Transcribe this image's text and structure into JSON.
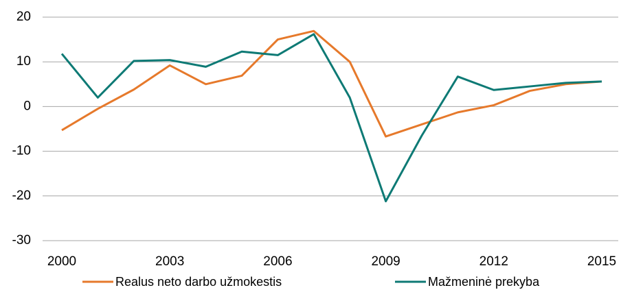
{
  "chart_data": {
    "type": "line",
    "x": [
      2000,
      2001,
      2002,
      2003,
      2004,
      2005,
      2006,
      2007,
      2008,
      2009,
      2010,
      2011,
      2012,
      2013,
      2014,
      2015
    ],
    "series": [
      {
        "name": "Realus neto darbo užmokestis",
        "color": "#e6792b",
        "values": [
          -5.3,
          -0.5,
          3.8,
          9.2,
          5.0,
          6.9,
          15.0,
          16.9,
          10.0,
          -6.7,
          -4.0,
          -1.3,
          0.3,
          3.5,
          5.0,
          5.6
        ]
      },
      {
        "name": "Mažmeninė prekyba",
        "color": "#0e7a75",
        "values": [
          11.8,
          2.0,
          10.2,
          10.4,
          8.9,
          12.3,
          11.5,
          16.2,
          2.0,
          -21.2,
          -6.5,
          6.7,
          3.7,
          4.5,
          5.3,
          5.6
        ]
      }
    ],
    "xlim": [
      2000,
      2015
    ],
    "xticks": [
      2000,
      2003,
      2006,
      2009,
      2012,
      2015
    ],
    "ylim": [
      -30,
      20
    ],
    "yticks": [
      -30,
      -20,
      -10,
      0,
      10,
      20
    ],
    "grid": true,
    "legend": "bottom"
  }
}
